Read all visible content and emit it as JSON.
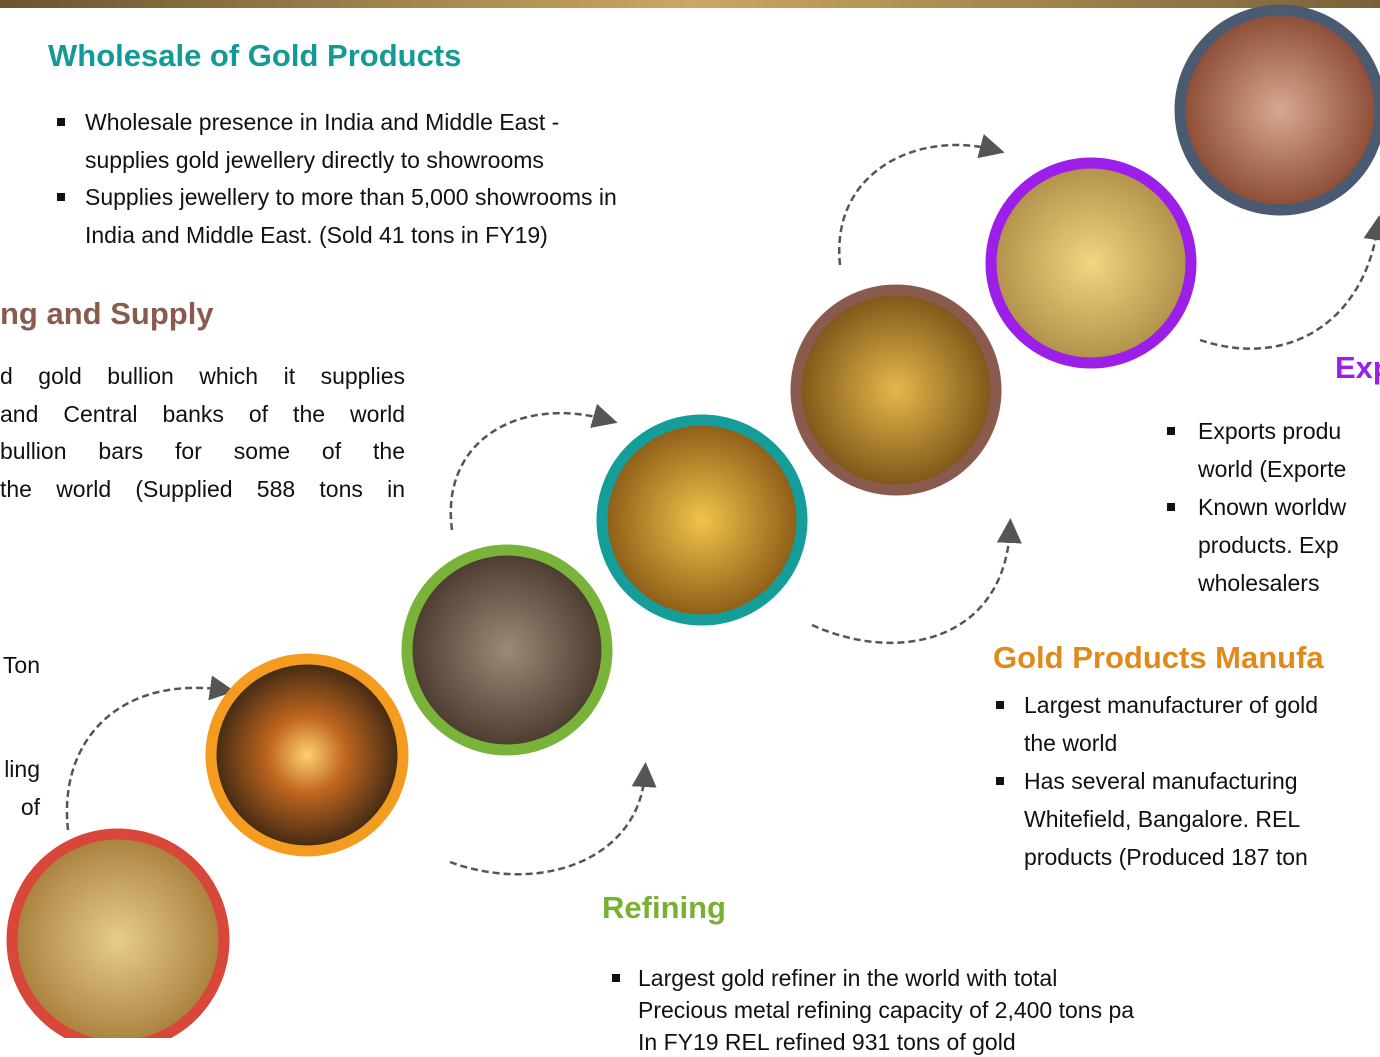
{
  "wholesale": {
    "heading": "Wholesale of Gold Products",
    "bullets": [
      [
        "Wholesale presence in India and Middle East -",
        "supplies gold jewellery directly to showrooms"
      ],
      [
        "Supplies jewellery to more than 5,000 showrooms in",
        "India and Middle East. (Sold 41 tons in FY19)"
      ]
    ]
  },
  "supply": {
    "heading": "ng and Supply",
    "lines": [
      "d gold bullion which it supplies",
      "and Central banks of the world",
      "bullion bars for some of the",
      "the world (Supplied 588 tons in"
    ]
  },
  "left_fragments": [
    "Ton",
    "ling",
    "of"
  ],
  "export": {
    "heading": "Exp",
    "bullets": [
      [
        "Exports produ",
        "world (Exporte"
      ],
      [
        "Known worldw",
        "products.  Exp",
        "wholesalers"
      ]
    ]
  },
  "manufacturing": {
    "heading": "Gold Products Manufa",
    "bullets": [
      [
        "Largest manufacturer of gold",
        "the world"
      ],
      [
        "Has several manufacturing",
        "Whitefield, Bangalore. REL",
        "products (Produced 187 ton"
      ]
    ]
  },
  "refining": {
    "heading": "Refining",
    "bullets": [
      [
        "Largest gold refiner in the world with total",
        "Precious metal refining capacity of 2,400 tons pa",
        "In FY19 REL refined 931 tons of gold"
      ]
    ]
  }
}
